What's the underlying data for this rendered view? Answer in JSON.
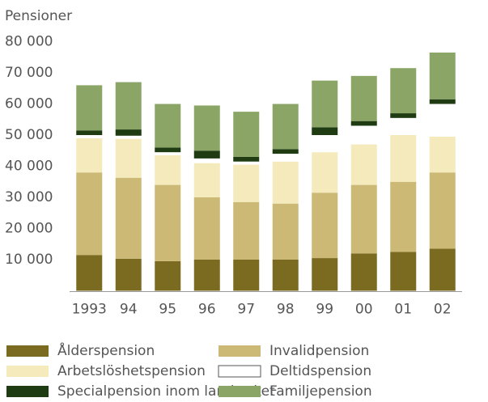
{
  "chart_data": {
    "type": "stacked_bar",
    "title": "Pensioner",
    "categories": [
      "1993",
      "94",
      "95",
      "96",
      "97",
      "98",
      "99",
      "00",
      "01",
      "02"
    ],
    "series": [
      {
        "name": "Ålderspension",
        "color": "#7b6b20",
        "values": [
          11500,
          10300,
          9500,
          10000,
          10000,
          10000,
          10500,
          12000,
          12500,
          13500
        ]
      },
      {
        "name": "Invalidpension",
        "color": "#cbb975",
        "values": [
          26500,
          26000,
          24500,
          20000,
          18500,
          18000,
          21000,
          22000,
          22500,
          24500
        ]
      },
      {
        "name": "Arbetslöshetspension",
        "color": "#f4eabb",
        "values": [
          11000,
          12500,
          9500,
          11000,
          12000,
          13500,
          13000,
          13000,
          15000,
          11500
        ]
      },
      {
        "name": "Deltidspension",
        "color": "#ffffff",
        "values": [
          1000,
          1000,
          1000,
          1500,
          1000,
          2500,
          5500,
          6000,
          5500,
          10500
        ]
      },
      {
        "name": "Specialpension inom lantbruket",
        "color": "#1f3b12",
        "values": [
          1500,
          2000,
          1500,
          2500,
          1500,
          1500,
          2500,
          1500,
          1500,
          1500
        ]
      },
      {
        "name": "Familjepension",
        "color": "#8ba567",
        "values": [
          14500,
          15200,
          14000,
          14500,
          14500,
          14500,
          15000,
          14500,
          14500,
          15000
        ]
      }
    ],
    "ylim": [
      0,
      80000
    ],
    "yticks": [
      {
        "value": 10000,
        "label": "10 000"
      },
      {
        "value": 20000,
        "label": "20 000"
      },
      {
        "value": 30000,
        "label": "30 000"
      },
      {
        "value": 40000,
        "label": "40 000"
      },
      {
        "value": 50000,
        "label": "50 000"
      },
      {
        "value": 60000,
        "label": "60 000"
      },
      {
        "value": 70000,
        "label": "70 000"
      },
      {
        "value": 80000,
        "label": "80 000"
      }
    ],
    "grid": false
  }
}
